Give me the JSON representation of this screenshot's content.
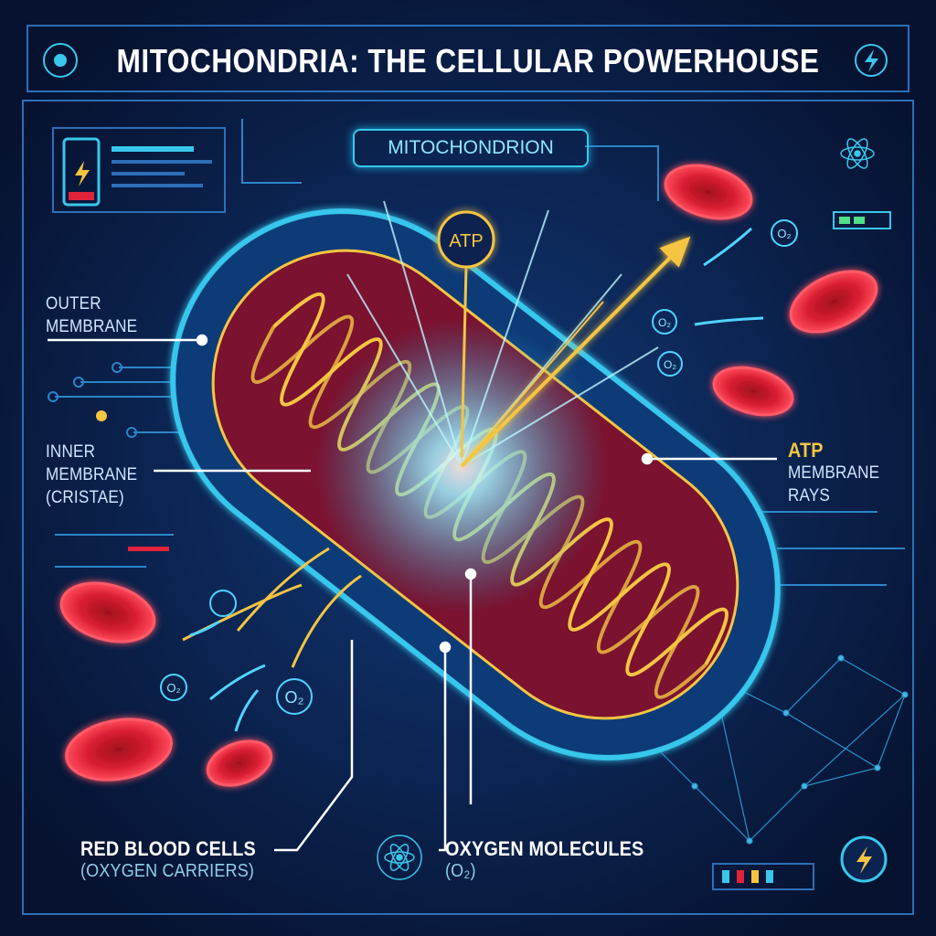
{
  "title": "MITOCHONDRIA: THE CELLULAR POWERHOUSE",
  "diagram_label": "MITOCHONDRION",
  "atp_badge": "ATP",
  "o2_label": "O₂",
  "labels": {
    "outer_membrane": [
      "OUTER",
      "MEMBRANE"
    ],
    "inner_membrane": [
      "INNER",
      "MEMBRANE",
      "(CRISTAE)"
    ],
    "atp_rays": [
      "ATP",
      "MEMBRANE",
      "RAYS"
    ],
    "red_blood_cells": [
      "RED BLOOD CELLS",
      "(OXYGEN CARRIERS)"
    ],
    "oxygen_molecules": [
      "OXYGEN MOLECULES",
      "(O₂)"
    ]
  },
  "colors": {
    "background": "#08163a",
    "cyan": "#39c7ec",
    "yellow": "#f5c542",
    "red": "#e0233a",
    "matrix": "#7a1230"
  },
  "icons": [
    "network-icon",
    "lightning-icon",
    "battery-icon",
    "atom-icon"
  ]
}
